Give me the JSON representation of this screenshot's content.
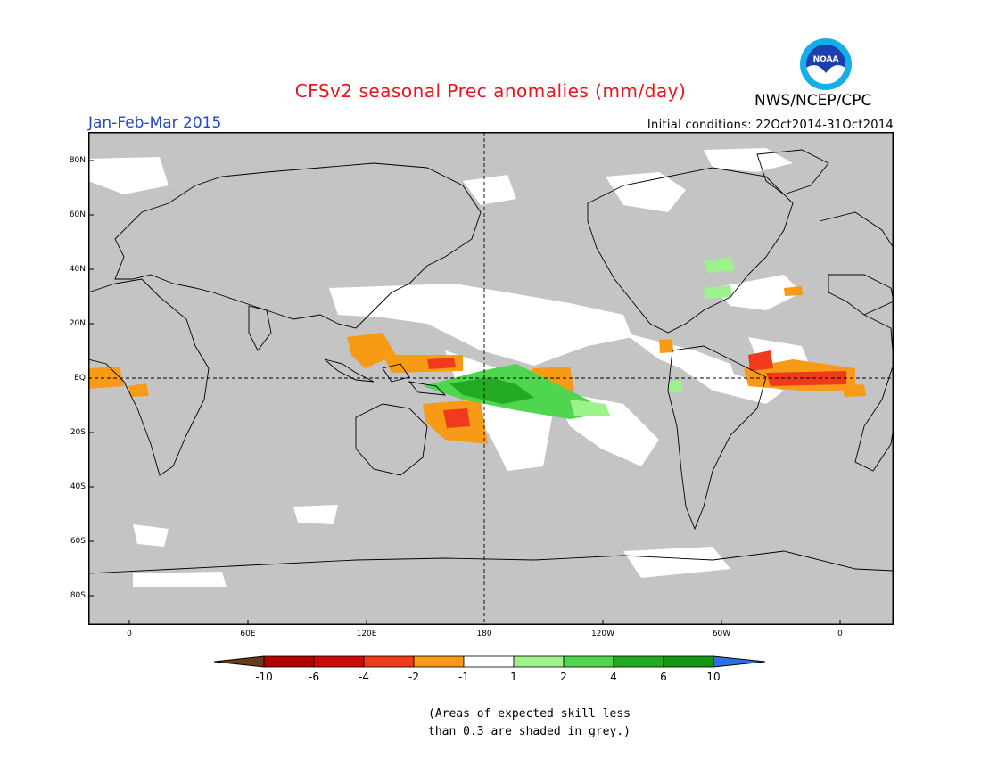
{
  "header": {
    "title": "CFSv2 seasonal Prec anomalies (mm/day)",
    "season": "Jan-Feb-Mar 2015",
    "initial_conditions": "Initial conditions: 22Oct2014-31Oct2014",
    "agency": "NWS/NCEP/CPC",
    "logo_text": "NOAA"
  },
  "map": {
    "lat_labels": [
      "80N",
      "60N",
      "40N",
      "20N",
      "EQ",
      "20S",
      "40S",
      "60S",
      "80S"
    ],
    "lon_labels": [
      "0",
      "60E",
      "120E",
      "180",
      "120W",
      "60W",
      "0"
    ],
    "grey_color": "#c4c4c4"
  },
  "colorbar": {
    "labels": [
      "-10",
      "-6",
      "-4",
      "-2",
      "-1",
      "1",
      "2",
      "4",
      "6",
      "10"
    ],
    "colors": [
      "#6b3a1c",
      "#b00000",
      "#cc0a0a",
      "#ef3b1c",
      "#f79a16",
      "#ffffff",
      "#9ef28c",
      "#4fd64f",
      "#23aa23",
      "#139613",
      "#2d70e3"
    ]
  },
  "footnote": {
    "line1": "(Areas of expected skill less",
    "line2": "than 0.3 are shaded in grey.)"
  }
}
